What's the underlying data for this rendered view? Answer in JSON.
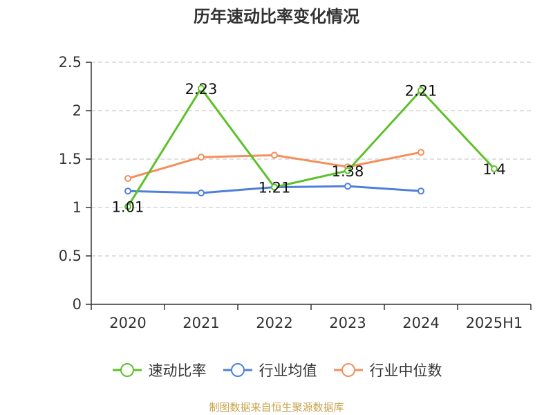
{
  "chart_data": {
    "type": "line",
    "title": "历年速动比率变化情况",
    "categories": [
      "2020",
      "2021",
      "2022",
      "2023",
      "2024",
      "2025H1"
    ],
    "ylim": [
      0,
      2.5
    ],
    "yticks": [
      "0",
      "0.5",
      "1",
      "1.5",
      "2",
      "2.5"
    ],
    "grid": true,
    "legend_position": "bottom",
    "series": [
      {
        "name": "速动比率",
        "color": "#5cc128",
        "values": [
          1.01,
          2.23,
          1.21,
          1.38,
          2.21,
          1.4
        ],
        "labels": [
          "1.01",
          "2.23",
          "1.21",
          "1.38",
          "2.21",
          "1.4"
        ]
      },
      {
        "name": "行业均值",
        "color": "#4f7fdc",
        "values": [
          1.17,
          1.15,
          1.21,
          1.22,
          1.17,
          null
        ]
      },
      {
        "name": "行业中位数",
        "color": "#f58e5a",
        "values": [
          1.3,
          1.52,
          1.54,
          1.42,
          1.57,
          null
        ]
      }
    ]
  },
  "source": "制图数据来自恒生聚源数据库"
}
